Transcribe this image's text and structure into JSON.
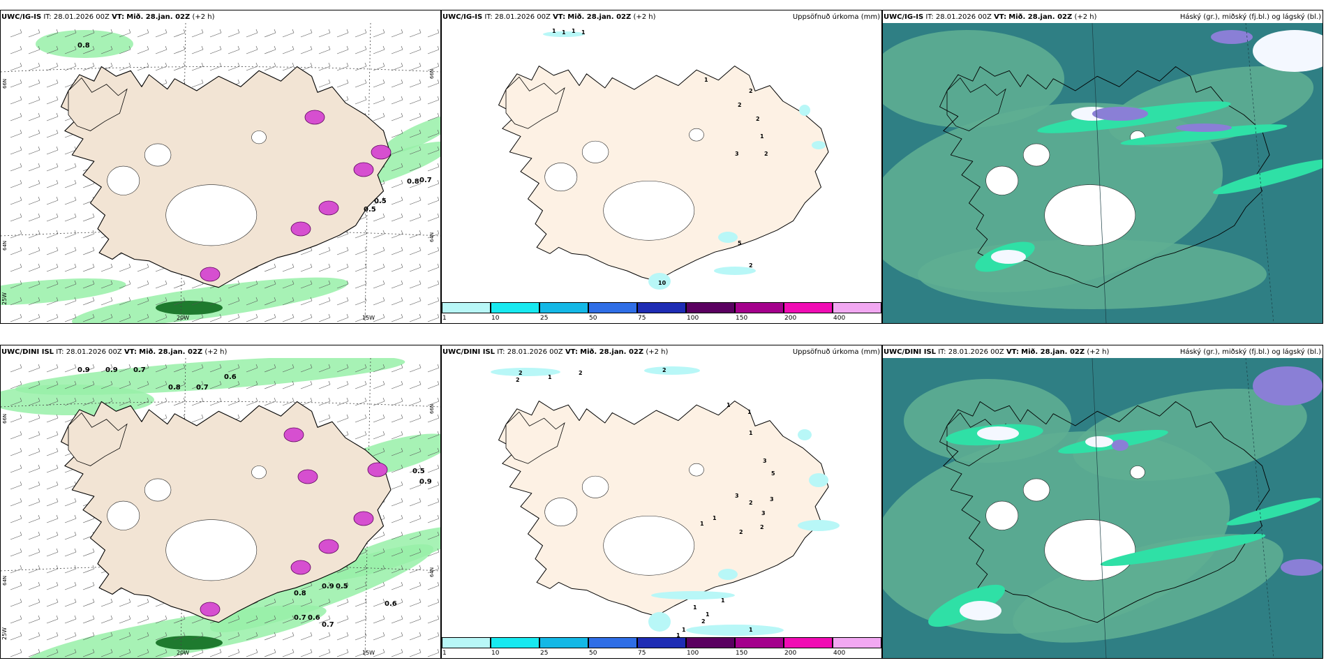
{
  "rows": [
    {
      "panels": [
        {
          "model": "UWC/IG-IS",
          "it_label": "IT:",
          "it": "28.01.2026 00Z",
          "vt_label": "VT:",
          "vt": "Mið. 28.jan. 02Z",
          "lead": "(+2 h)",
          "right_title": ""
        },
        {
          "model": "UWC/IG-IS",
          "it_label": "IT:",
          "it": "28.01.2026 00Z",
          "vt_label": "VT:",
          "vt": "Mið. 28.jan. 02Z",
          "lead": "(+2 h)",
          "right_title": "Uppsöfnuð úrkoma (mm)"
        },
        {
          "model": "UWC/IG-IS",
          "it_label": "IT:",
          "it": "28.01.2026 00Z",
          "vt_label": "VT:",
          "vt": "Mið. 28.jan. 02Z",
          "lead": "(+2 h)",
          "right_title": "Háský (gr.), miðský (fj.bl.) og lágský (bl.)"
        }
      ]
    },
    {
      "panels": [
        {
          "model": "UWC/DINI ISL",
          "it_label": "IT:",
          "it": "28.01.2026 00Z",
          "vt_label": "VT:",
          "vt": "Mið. 28.jan. 02Z",
          "lead": "(+2 h)",
          "right_title": ""
        },
        {
          "model": "UWC/DINI ISL",
          "it_label": "IT:",
          "it": "28.01.2026 00Z",
          "vt_label": "VT:",
          "vt": "Mið. 28.jan. 02Z",
          "lead": "(+2 h)",
          "right_title": "Uppsöfnuð úrkoma (mm)"
        },
        {
          "model": "UWC/DINI ISL",
          "it_label": "IT:",
          "it": "28.01.2026 00Z",
          "vt_label": "VT:",
          "vt": "Mið. 28.jan. 02Z",
          "lead": "(+2 h)",
          "right_title": "Háský (gr.), miðský (fj.bl.) og lágský (bl.)"
        }
      ]
    }
  ],
  "map_labels": {
    "lon_20w": "20W",
    "lon_15w": "15W",
    "lon_25w": "25W",
    "lat_66n": "66N",
    "lat_64n": "64N"
  },
  "colorbar": {
    "ticks": [
      "1",
      "10",
      "25",
      "50",
      "75",
      "100",
      "150",
      "200",
      "400"
    ],
    "colors": [
      "#b8f7f7",
      "#18e9f0",
      "#14b8e6",
      "#2f6ee6",
      "#1e2cb4",
      "#5a0060",
      "#a4008c",
      "#f00cb4",
      "#f2a8f2"
    ]
  },
  "precip_values_top": [
    "1",
    "1",
    "1",
    "1",
    "1",
    "2",
    "2",
    "2",
    "1",
    "3",
    "2",
    "10",
    "2",
    "5",
    "1"
  ],
  "precip_values_bottom": [
    "2",
    "2",
    "1",
    "2",
    "2",
    "1",
    "1",
    "1",
    "3",
    "5",
    "3",
    "2",
    "3",
    "3",
    "2",
    "2",
    "1",
    "1",
    "1",
    "1",
    "1",
    "2",
    "1",
    "1",
    "1"
  ],
  "wind_values_top": [
    "0.8",
    "0.7",
    "0.5",
    "0.5",
    "0.8"
  ],
  "wind_values_bottom": [
    "0.9",
    "0.9",
    "0.7",
    "0.8",
    "0.7",
    "0.6",
    "0.8",
    "0.9",
    "0.5",
    "0.6",
    "0.5",
    "0.7",
    "0.6",
    "0.7",
    "0.9"
  ],
  "colors": {
    "land": "#f2e4d4",
    "land_precip": "#fdf1e4",
    "cloud_low": "#2f7f84",
    "cloud_mid": "#5eae92",
    "cloud_green": "#2fe0a6",
    "wind_green": "#98f0a8"
  }
}
